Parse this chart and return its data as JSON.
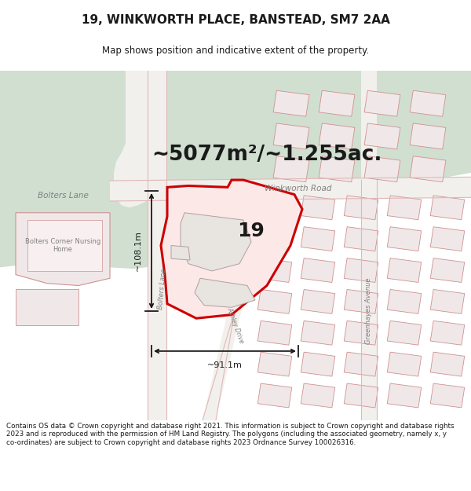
{
  "title": "19, WINKWORTH PLACE, BANSTEAD, SM7 2AA",
  "subtitle": "Map shows position and indicative extent of the property.",
  "area_text": "~5077m²/~1.255ac.",
  "dim_horizontal": "~91.1m",
  "dim_vertical": "~108.1m",
  "label_number": "19",
  "road_label_bolters_h": "Bolters Lane",
  "road_label_winkworth": "Winkworth Road",
  "road_label_bolters_v": "Bolters Lane",
  "road_label_ashley": "Ashley Drive",
  "road_label_greenhayes": "Greenhayes Avenue",
  "building_label": "Bolters Corner Nursing\nHome",
  "footer_text": "Contains OS data © Crown copyright and database right 2021. This information is subject to Crown copyright and database rights 2023 and is reproduced with the permission of HM Land Registry. The polygons (including the associated geometry, namely x, y co-ordinates) are subject to Crown copyright and database rights 2023 Ordnance Survey 100026316.",
  "map_bg": "#f2f0ec",
  "green_color": "#d0dfd0",
  "white_bg": "#ffffff",
  "road_fill": "#f5f2ee",
  "road_edge": "#e0b8b8",
  "building_fill": "#f0e8e8",
  "building_edge": "#d09090",
  "prop_fill": "#fde8e8",
  "prop_edge": "#cc0000",
  "inner_fill": "#ede8e4",
  "inner_edge": "#c09090",
  "text_dark": "#1a1a1a",
  "text_road": "#808080",
  "dim_color": "#1a1a1a"
}
